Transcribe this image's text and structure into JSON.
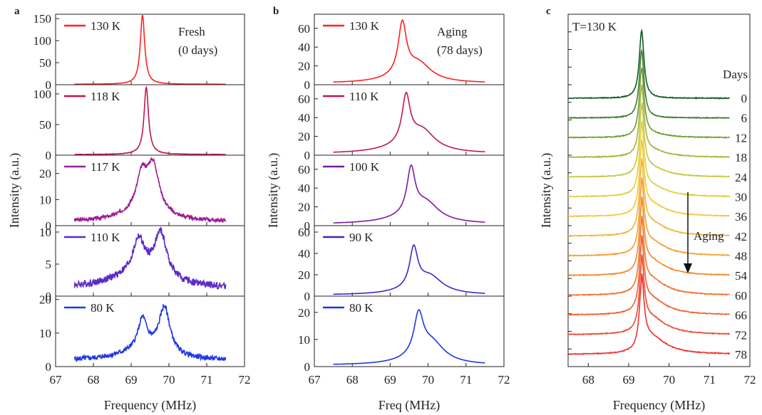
{
  "chart_data": [
    {
      "panel": "a",
      "type": "line",
      "xlabel": "Frequency (MHz)",
      "ylabel": "Intensity (a.u.)",
      "xlim": [
        67,
        72
      ],
      "xticks": [
        67,
        68,
        69,
        70,
        71,
        72
      ],
      "annotation": [
        "Fresh",
        "(0 days)"
      ],
      "subplots": [
        {
          "name": "130 K",
          "color": "#ff2020",
          "ylim": [
            0,
            160
          ],
          "yticks": [
            0,
            50,
            100,
            150
          ],
          "peaks": [
            {
              "center": 69.3,
              "height": 155,
              "width": 0.07
            }
          ],
          "baseline": 1,
          "tail": 2,
          "tail_width": 0.25,
          "noise": 0,
          "x_range": [
            67.5,
            71.5
          ]
        },
        {
          "name": "118 K",
          "color": "#c0184e",
          "ylim": [
            0,
            115
          ],
          "yticks": [
            0,
            50,
            100
          ],
          "peaks": [
            {
              "center": 69.4,
              "height": 107,
              "width": 0.07
            }
          ],
          "baseline": 1,
          "tail": 3,
          "tail_width": 0.25,
          "noise": 0.4,
          "x_range": [
            67.5,
            71.5
          ]
        },
        {
          "name": "117 K",
          "color": "#9b1d94",
          "ylim": [
            0,
            27
          ],
          "yticks": [
            0,
            10,
            20
          ],
          "peaks": [
            {
              "center": 69.28,
              "height": 12,
              "width": 0.16
            },
            {
              "center": 69.58,
              "height": 18,
              "width": 0.2
            }
          ],
          "baseline": 1.5,
          "tail": 4,
          "tail_width": 0.6,
          "noise": 0.7,
          "x_range": [
            67.5,
            71.5
          ]
        },
        {
          "name": "110 K",
          "color": "#5b2bc7",
          "ylim": [
            0,
            11
          ],
          "yticks": [
            0,
            5,
            10
          ],
          "peaks": [
            {
              "center": 69.2,
              "height": 5,
              "width": 0.17
            },
            {
              "center": 69.78,
              "height": 7,
              "width": 0.2
            }
          ],
          "baseline": 1.2,
          "tail": 2.5,
          "tail_width": 0.8,
          "noise": 0.55,
          "x_range": [
            67.5,
            71.5
          ]
        },
        {
          "name": "80 K",
          "color": "#1f37e6",
          "ylim": [
            0,
            21
          ],
          "yticks": [
            0,
            10,
            20
          ],
          "peaks": [
            {
              "center": 69.3,
              "height": 9,
              "width": 0.14
            },
            {
              "center": 69.88,
              "height": 14,
              "width": 0.18
            }
          ],
          "baseline": 1.8,
          "tail": 3,
          "tail_width": 0.7,
          "noise": 0.7,
          "x_range": [
            67.5,
            71.5
          ]
        }
      ]
    },
    {
      "panel": "b",
      "type": "line",
      "xlabel": "Freq (MHz)",
      "ylabel": "Intensity (a.u.)",
      "xlim": [
        67,
        72
      ],
      "xticks": [
        67,
        68,
        69,
        70,
        71,
        72
      ],
      "annotation": [
        "Aging",
        "(78 days)"
      ],
      "subplots": [
        {
          "name": "130 K",
          "color": "#ff2020",
          "ylim": [
            0,
            75
          ],
          "yticks": [
            0,
            20,
            40,
            60
          ],
          "peaks": [
            {
              "center": 69.32,
              "height": 55,
              "width": 0.13
            },
            {
              "center": 69.75,
              "height": 18,
              "width": 0.4
            }
          ],
          "baseline": 1.5,
          "tail": 4,
          "tail_width": 0.7,
          "noise": 0,
          "x_range": [
            67.5,
            71.5
          ]
        },
        {
          "name": "110 K",
          "color": "#c0184e",
          "ylim": [
            0,
            75
          ],
          "yticks": [
            0,
            20,
            40,
            60
          ],
          "peaks": [
            {
              "center": 69.42,
              "height": 50,
              "width": 0.13
            },
            {
              "center": 69.85,
              "height": 20,
              "width": 0.4
            }
          ],
          "baseline": 1.5,
          "tail": 6,
          "tail_width": 0.8,
          "noise": 0,
          "x_range": [
            67.5,
            71.5
          ]
        },
        {
          "name": "100 K",
          "color": "#7b1aa0",
          "ylim": [
            0,
            75
          ],
          "yticks": [
            0,
            20,
            40,
            60
          ],
          "peaks": [
            {
              "center": 69.55,
              "height": 48,
              "width": 0.13
            },
            {
              "center": 69.95,
              "height": 18,
              "width": 0.4
            }
          ],
          "baseline": 1.5,
          "tail": 6,
          "tail_width": 0.8,
          "noise": 0,
          "x_range": [
            67.5,
            71.5
          ]
        },
        {
          "name": "90 K",
          "color": "#4b22c4",
          "ylim": [
            0,
            66
          ],
          "yticks": [
            0,
            20,
            40,
            60
          ],
          "peaks": [
            {
              "center": 69.62,
              "height": 37,
              "width": 0.13
            },
            {
              "center": 70.05,
              "height": 15,
              "width": 0.4
            }
          ],
          "baseline": 1,
          "tail": 3,
          "tail_width": 0.7,
          "noise": 0,
          "x_range": [
            67.5,
            71.5
          ]
        },
        {
          "name": "80 K",
          "color": "#1f37e6",
          "ylim": [
            0,
            26
          ],
          "yticks": [
            0,
            10,
            20
          ],
          "peaks": [
            {
              "center": 69.75,
              "height": 15,
              "width": 0.15
            },
            {
              "center": 70.1,
              "height": 7,
              "width": 0.4
            }
          ],
          "baseline": 0.5,
          "tail": 1.5,
          "tail_width": 0.7,
          "noise": 0,
          "x_range": [
            67.5,
            71.5
          ]
        }
      ]
    },
    {
      "panel": "c",
      "type": "line",
      "xlabel": "Frequency (MHz)",
      "ylabel": "Intensity (a.u.)",
      "xlim": [
        67.5,
        72
      ],
      "xticks": [
        68,
        69,
        70,
        71,
        72
      ],
      "temperature_label": "T=130 K",
      "days_title": "Days",
      "aging_label": "Aging",
      "peak": {
        "center": 69.32,
        "height": 1.0,
        "width": 0.07,
        "shoulder_center": 69.55,
        "shoulder_height": 0.25,
        "shoulder_width": 0.45
      },
      "series": [
        {
          "name": "0",
          "color": "#0f5a26",
          "level": 0.0
        },
        {
          "name": "6",
          "color": "#3f7d2c",
          "level": 0.0
        },
        {
          "name": "12",
          "color": "#6f9b33",
          "level": 0.05
        },
        {
          "name": "18",
          "color": "#9fb63a",
          "level": 0.1
        },
        {
          "name": "24",
          "color": "#c6c640",
          "level": 0.13
        },
        {
          "name": "30",
          "color": "#e3cd3f",
          "level": 0.15
        },
        {
          "name": "36",
          "color": "#f4c733",
          "level": 0.17
        },
        {
          "name": "42",
          "color": "#f3b32f",
          "level": 0.19
        },
        {
          "name": "48",
          "color": "#f39e2d",
          "level": 0.2
        },
        {
          "name": "54",
          "color": "#f3882c",
          "level": 0.21
        },
        {
          "name": "60",
          "color": "#f2732c",
          "level": 0.22
        },
        {
          "name": "66",
          "color": "#f15f2e",
          "level": 0.23
        },
        {
          "name": "72",
          "color": "#ef4a2f",
          "level": 0.24
        },
        {
          "name": "78",
          "color": "#ee3030",
          "level": 0.25
        }
      ]
    }
  ]
}
